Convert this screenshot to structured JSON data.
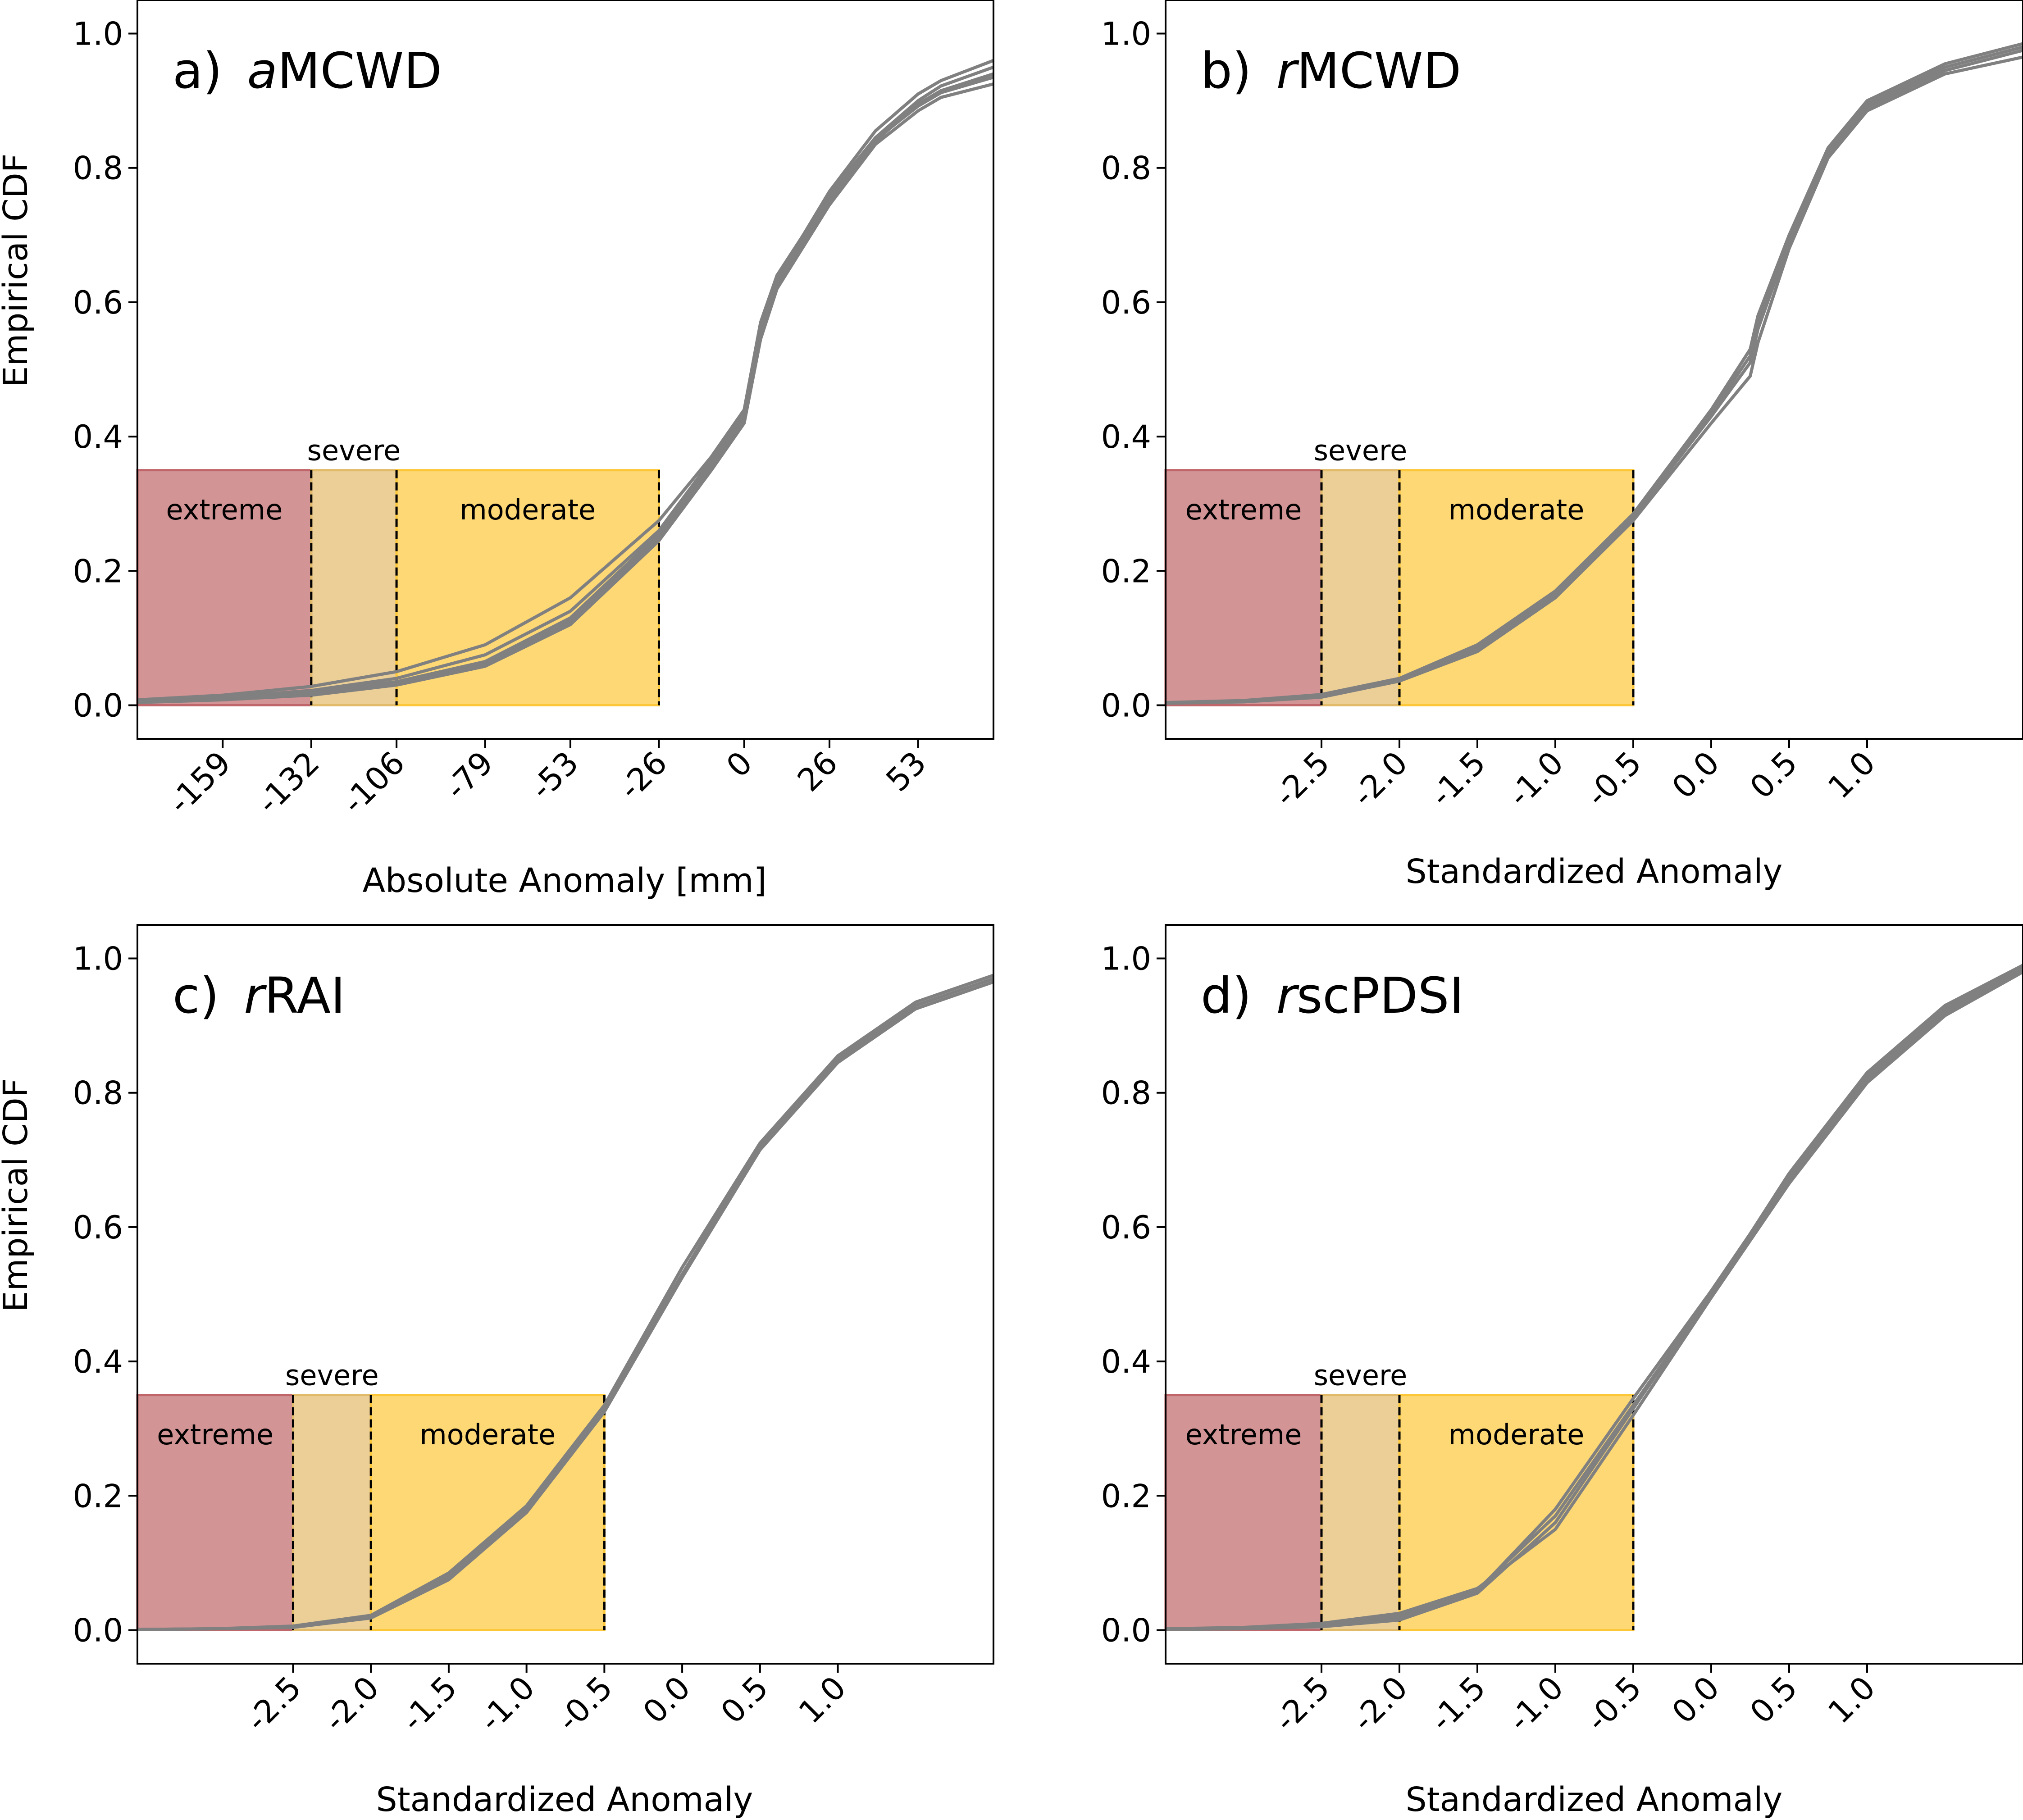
{
  "chart_data": [
    {
      "id": "a",
      "type": "line",
      "title_letter": "a)",
      "title_italic": "a",
      "title_rest": "MCWD",
      "xlabel": "Absolute Anomaly [mm]",
      "ylabel": "Empirical CDF",
      "xlim": [
        -185,
        76
      ],
      "ylim": [
        -0.05,
        1.05
      ],
      "xticks": [
        -159,
        -132,
        -106,
        -79,
        -53,
        -26,
        0,
        26,
        53
      ],
      "xtick_labels": [
        "-159",
        "-132",
        "-106",
        "-79",
        "-53",
        "-26",
        "0",
        "26",
        "53"
      ],
      "yticks": [
        0.0,
        0.2,
        0.4,
        0.6,
        0.8,
        1.0
      ],
      "ytick_labels": [
        "0.0",
        "0.2",
        "0.4",
        "0.6",
        "0.8",
        "1.0"
      ],
      "zones": [
        {
          "name": "extreme",
          "label": "extreme",
          "x0": -185,
          "x1": -132,
          "color": "#c0666a"
        },
        {
          "name": "severe",
          "label": "severe",
          "x0": -132,
          "x1": -106,
          "color": "#e2bb6a"
        },
        {
          "name": "moderate",
          "label": "moderate",
          "x0": -106,
          "x1": -26,
          "color": "#fcc83a"
        }
      ],
      "zone_top": 0.35,
      "thresholds": [
        -132,
        -106,
        -26
      ],
      "line_color": "#808080",
      "series": [
        {
          "x": [
            -185,
            -159,
            -132,
            -106,
            -79,
            -53,
            -26,
            -10,
            0,
            5,
            10,
            26,
            40,
            53,
            60,
            76
          ],
          "y": [
            0.005,
            0.01,
            0.02,
            0.035,
            0.065,
            0.13,
            0.255,
            0.36,
            0.43,
            0.56,
            0.63,
            0.755,
            0.84,
            0.895,
            0.915,
            0.94
          ]
        },
        {
          "x": [
            -185,
            -159,
            -132,
            -106,
            -79,
            -53,
            -26,
            -10,
            0,
            5,
            10,
            26,
            40,
            53,
            60,
            76
          ],
          "y": [
            0.008,
            0.015,
            0.028,
            0.05,
            0.09,
            0.16,
            0.275,
            0.37,
            0.44,
            0.57,
            0.64,
            0.76,
            0.845,
            0.9,
            0.922,
            0.95
          ]
        },
        {
          "x": [
            -185,
            -159,
            -132,
            -106,
            -79,
            -53,
            -26,
            -10,
            0,
            5,
            10,
            26,
            40,
            53,
            60,
            76
          ],
          "y": [
            0.004,
            0.008,
            0.015,
            0.03,
            0.058,
            0.12,
            0.245,
            0.35,
            0.42,
            0.545,
            0.62,
            0.745,
            0.835,
            0.885,
            0.905,
            0.925
          ]
        },
        {
          "x": [
            -185,
            -159,
            -132,
            -106,
            -79,
            -53,
            -26,
            -10,
            0,
            5,
            10,
            26,
            40,
            53,
            60,
            76
          ],
          "y": [
            0.006,
            0.012,
            0.022,
            0.04,
            0.075,
            0.14,
            0.26,
            0.365,
            0.435,
            0.565,
            0.635,
            0.765,
            0.855,
            0.91,
            0.93,
            0.96
          ]
        },
        {
          "x": [
            -185,
            -159,
            -132,
            -106,
            -79,
            -53,
            -26,
            -10,
            0,
            5,
            10,
            26,
            40,
            53,
            60,
            76
          ],
          "y": [
            0.005,
            0.011,
            0.018,
            0.033,
            0.062,
            0.125,
            0.25,
            0.355,
            0.425,
            0.55,
            0.625,
            0.75,
            0.842,
            0.892,
            0.912,
            0.935
          ]
        }
      ]
    },
    {
      "id": "b",
      "type": "line",
      "title_letter": "b)",
      "title_italic": "r",
      "title_rest": "MCWD",
      "xlabel": "Standardized Anomaly",
      "ylabel": "",
      "xlim": [
        -3.5,
        2.0
      ],
      "ylim": [
        -0.05,
        1.05
      ],
      "xticks": [
        -2.5,
        -2.0,
        -1.5,
        -1.0,
        -0.5,
        0.0,
        0.5,
        1.0
      ],
      "xtick_labels": [
        "-2.5",
        "-2.0",
        "-1.5",
        "-1.0",
        "-0.5",
        "0.0",
        "0.5",
        "1.0"
      ],
      "yticks": [
        0.0,
        0.2,
        0.4,
        0.6,
        0.8,
        1.0
      ],
      "ytick_labels": [
        "0.0",
        "0.2",
        "0.4",
        "0.6",
        "0.8",
        "1.0"
      ],
      "zones": [
        {
          "name": "extreme",
          "label": "extreme",
          "x0": -3.5,
          "x1": -2.5,
          "color": "#c0666a"
        },
        {
          "name": "severe",
          "label": "severe",
          "x0": -2.5,
          "x1": -2.0,
          "color": "#e2bb6a"
        },
        {
          "name": "moderate",
          "label": "moderate",
          "x0": -2.0,
          "x1": -0.5,
          "color": "#fcc83a"
        }
      ],
      "zone_top": 0.35,
      "thresholds": [
        -2.5,
        -2.0,
        -0.5
      ],
      "line_color": "#808080",
      "series": [
        {
          "x": [
            -3.5,
            -3.0,
            -2.5,
            -2.0,
            -1.5,
            -1.0,
            -0.5,
            0.0,
            0.25,
            0.3,
            0.5,
            0.75,
            1.0,
            1.5,
            2.0
          ],
          "y": [
            0.003,
            0.006,
            0.014,
            0.038,
            0.085,
            0.165,
            0.28,
            0.43,
            0.51,
            0.56,
            0.69,
            0.82,
            0.89,
            0.945,
            0.975
          ]
        },
        {
          "x": [
            -3.5,
            -3.0,
            -2.5,
            -2.0,
            -1.5,
            -1.0,
            -0.5,
            0.0,
            0.25,
            0.3,
            0.5,
            0.75,
            1.0,
            1.5,
            2.0
          ],
          "y": [
            0.004,
            0.007,
            0.016,
            0.04,
            0.09,
            0.17,
            0.285,
            0.44,
            0.53,
            0.58,
            0.7,
            0.83,
            0.9,
            0.955,
            0.985
          ]
        },
        {
          "x": [
            -3.5,
            -3.0,
            -2.5,
            -2.0,
            -1.5,
            -1.0,
            -0.5,
            0.0,
            0.25,
            0.3,
            0.5,
            0.75,
            1.0,
            1.5,
            2.0
          ],
          "y": [
            0.003,
            0.005,
            0.012,
            0.036,
            0.08,
            0.16,
            0.275,
            0.42,
            0.49,
            0.54,
            0.68,
            0.815,
            0.885,
            0.94,
            0.965
          ]
        },
        {
          "x": [
            -3.5,
            -3.0,
            -2.5,
            -2.0,
            -1.5,
            -1.0,
            -0.5,
            0.0,
            0.25,
            0.3,
            0.5,
            0.75,
            1.0,
            1.5,
            2.0
          ],
          "y": [
            0.004,
            0.006,
            0.015,
            0.039,
            0.087,
            0.168,
            0.282,
            0.435,
            0.52,
            0.57,
            0.695,
            0.825,
            0.895,
            0.95,
            0.98
          ]
        }
      ]
    },
    {
      "id": "c",
      "type": "line",
      "title_letter": "c)",
      "title_italic": "r",
      "title_rest": "RAI",
      "xlabel": "Standardized Anomaly",
      "ylabel": "Empirical CDF",
      "xlim": [
        -3.5,
        2.0
      ],
      "ylim": [
        -0.05,
        1.05
      ],
      "xticks": [
        -2.5,
        -2.0,
        -1.5,
        -1.0,
        -0.5,
        0.0,
        0.5,
        1.0
      ],
      "xtick_labels": [
        "-2.5",
        "-2.0",
        "-1.5",
        "-1.0",
        "-0.5",
        "0.0",
        "0.5",
        "1.0"
      ],
      "yticks": [
        0.0,
        0.2,
        0.4,
        0.6,
        0.8,
        1.0
      ],
      "ytick_labels": [
        "0.0",
        "0.2",
        "0.4",
        "0.6",
        "0.8",
        "1.0"
      ],
      "zones": [
        {
          "name": "extreme",
          "label": "extreme",
          "x0": -3.5,
          "x1": -2.5,
          "color": "#c0666a"
        },
        {
          "name": "severe",
          "label": "severe",
          "x0": -2.5,
          "x1": -2.0,
          "color": "#e2bb6a"
        },
        {
          "name": "moderate",
          "label": "moderate",
          "x0": -2.0,
          "x1": -0.5,
          "color": "#fcc83a"
        }
      ],
      "zone_top": 0.35,
      "thresholds": [
        -2.5,
        -2.0,
        -0.5
      ],
      "line_color": "#808080",
      "series": [
        {
          "x": [
            -3.5,
            -3.0,
            -2.5,
            -2.0,
            -1.5,
            -1.0,
            -0.5,
            0.0,
            0.5,
            1.0,
            1.5,
            2.0
          ],
          "y": [
            0.001,
            0.002,
            0.005,
            0.02,
            0.08,
            0.18,
            0.33,
            0.53,
            0.72,
            0.85,
            0.93,
            0.97
          ]
        },
        {
          "x": [
            -3.5,
            -3.0,
            -2.5,
            -2.0,
            -1.5,
            -1.0,
            -0.5,
            0.0,
            0.5,
            1.0,
            1.5,
            2.0
          ],
          "y": [
            0.001,
            0.002,
            0.006,
            0.022,
            0.085,
            0.185,
            0.335,
            0.54,
            0.725,
            0.855,
            0.935,
            0.975
          ]
        },
        {
          "x": [
            -3.5,
            -3.0,
            -2.5,
            -2.0,
            -1.5,
            -1.0,
            -0.5,
            0.0,
            0.5,
            1.0,
            1.5,
            2.0
          ],
          "y": [
            0.001,
            0.002,
            0.004,
            0.018,
            0.075,
            0.175,
            0.325,
            0.525,
            0.715,
            0.845,
            0.925,
            0.965
          ]
        }
      ]
    },
    {
      "id": "d",
      "type": "line",
      "title_letter": "d)",
      "title_italic": "r",
      "title_rest": "scPDSI",
      "xlabel": "Standardized Anomaly",
      "ylabel": "",
      "xlim": [
        -3.5,
        2.0
      ],
      "ylim": [
        -0.05,
        1.05
      ],
      "xticks": [
        -2.5,
        -2.0,
        -1.5,
        -1.0,
        -0.5,
        0.0,
        0.5,
        1.0
      ],
      "xtick_labels": [
        "-2.5",
        "-2.0",
        "-1.5",
        "-1.0",
        "-0.5",
        "0.0",
        "0.5",
        "1.0"
      ],
      "yticks": [
        0.0,
        0.2,
        0.4,
        0.6,
        0.8,
        1.0
      ],
      "ytick_labels": [
        "0.0",
        "0.2",
        "0.4",
        "0.6",
        "0.8",
        "1.0"
      ],
      "zones": [
        {
          "name": "extreme",
          "label": "extreme",
          "x0": -3.5,
          "x1": -2.5,
          "color": "#c0666a"
        },
        {
          "name": "severe",
          "label": "severe",
          "x0": -2.5,
          "x1": -2.0,
          "color": "#e2bb6a"
        },
        {
          "name": "moderate",
          "label": "moderate",
          "x0": -2.0,
          "x1": -0.5,
          "color": "#fcc83a"
        }
      ],
      "zone_top": 0.35,
      "thresholds": [
        -2.5,
        -2.0,
        -0.5
      ],
      "line_color": "#808080",
      "series": [
        {
          "x": [
            -3.5,
            -3.0,
            -2.5,
            -2.0,
            -1.5,
            -1.0,
            -0.5,
            0.0,
            0.5,
            1.0,
            1.5,
            2.0
          ],
          "y": [
            0.001,
            0.003,
            0.008,
            0.022,
            0.06,
            0.17,
            0.335,
            0.5,
            0.67,
            0.82,
            0.92,
            0.985
          ]
        },
        {
          "x": [
            -3.5,
            -3.0,
            -2.5,
            -2.0,
            -1.5,
            -1.0,
            -0.5,
            0.0,
            0.5,
            1.0,
            1.5,
            2.0
          ],
          "y": [
            0.001,
            0.002,
            0.005,
            0.015,
            0.055,
            0.16,
            0.33,
            0.5,
            0.68,
            0.83,
            0.93,
            0.99
          ]
        },
        {
          "x": [
            -3.5,
            -3.0,
            -2.5,
            -2.0,
            -1.5,
            -1.0,
            -0.5,
            0.0,
            0.5,
            1.0,
            1.5,
            2.0
          ],
          "y": [
            0.001,
            0.002,
            0.006,
            0.018,
            0.058,
            0.18,
            0.345,
            0.505,
            0.675,
            0.825,
            0.925,
            0.985
          ]
        },
        {
          "x": [
            -3.5,
            -3.0,
            -2.5,
            -2.0,
            -1.5,
            -1.0,
            -0.5,
            0.0,
            0.5,
            1.0,
            1.5,
            2.0
          ],
          "y": [
            0.002,
            0.004,
            0.01,
            0.025,
            0.062,
            0.15,
            0.32,
            0.495,
            0.665,
            0.815,
            0.915,
            0.98
          ]
        }
      ]
    }
  ]
}
